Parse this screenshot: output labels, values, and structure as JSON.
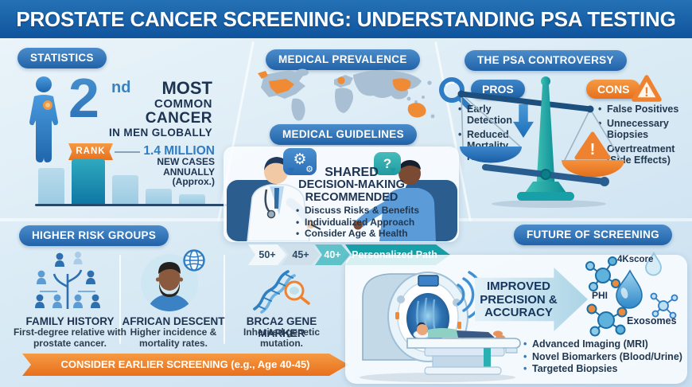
{
  "header": {
    "title": "PROSTATE CANCER SCREENING: UNDERSTANDING PSA TESTING"
  },
  "colors": {
    "header_blue": "#10549d",
    "badge_blue": "#2465ab",
    "accent_blue": "#2e7cc4",
    "navy": "#1d3352",
    "orange": "#ee7f2d",
    "teal": "#17a0a8",
    "background": "#d7e9f4"
  },
  "icons": {
    "gear_large": "⚙",
    "gear_small": "⚙",
    "question_mark": "?",
    "warning_exclamation": "!",
    "pan_warning_exclamation": "!"
  },
  "statistics": {
    "badge": "STATISTICS",
    "rank_number": "2",
    "rank_suffix": "nd",
    "line_most": "MOST",
    "line_common": "COMMON",
    "line_cancer": "CANCER",
    "line_globally": "IN MEN GLOBALLY",
    "rank_label": "RANK",
    "cases_value": "1.4 MILLION",
    "cases_line1": "NEW CASES",
    "cases_line2": "ANNUALLY",
    "cases_line3": "(Approx.)"
  },
  "chart_data": {
    "type": "bar",
    "description": "Decorative incidence-ranking bars; 2nd bar highlighted with RANK ribbon",
    "values": [
      45,
      56,
      36,
      19,
      12
    ],
    "highlight_index": 1,
    "annotation": "RANK — 1.4 MILLION NEW CASES ANNUALLY (Approx.)",
    "axis_labels": "none shown"
  },
  "prevalence": {
    "badge": "MEDICAL PREVALENCE"
  },
  "guidelines": {
    "badge": "MEDICAL GUIDELINES",
    "heading_line1": "SHARED",
    "heading_line2": "DECISION-MAKING",
    "heading_line3": "RECOMMENDED",
    "bullets": [
      "Discuss Risks & Benefits",
      "Individualized Approach",
      "Consider Age & Health"
    ]
  },
  "controversy": {
    "badge": "THE PSA CONTROVERSY",
    "pros_label": "PROS",
    "pros_bullets": [
      "Early Detection",
      "Reduced Mortality Risk"
    ],
    "cons_label": "CONS",
    "cons_bullets": [
      "False Positives",
      "Unnecessary Biopsies",
      "Overtreatment (Side Effects)"
    ]
  },
  "risk_groups": {
    "badge": "HIGHER RISK GROUPS",
    "items": [
      {
        "title": "FAMILY HISTORY",
        "desc": "First-degree relative with prostate cancer."
      },
      {
        "title": "AFRICAN DESCENT",
        "desc": "Higher incidence & mortality rates."
      },
      {
        "title": "BRCA2 GENE MARKER",
        "desc": "Inherited genetic mutation."
      }
    ],
    "banner": "CONSIDER EARLIER SCREENING (e.g., Age 40-45)"
  },
  "age_path": {
    "steps": [
      "50+",
      "45+",
      "40+"
    ],
    "final": "Personalized Path"
  },
  "future": {
    "badge": "FUTURE OF SCREENING",
    "arrow_line1": "IMPROVED",
    "arrow_line2": "PRECISION &",
    "arrow_line3": "ACCURACY",
    "label_4kscore": "4Kscore",
    "label_phi": "PHI",
    "label_exosomes": "Exosomes",
    "bullets": [
      "Advanced Imaging (MRI)",
      "Novel Biomarkers (Blood/Urine)",
      "Targeted Biopsies"
    ]
  }
}
